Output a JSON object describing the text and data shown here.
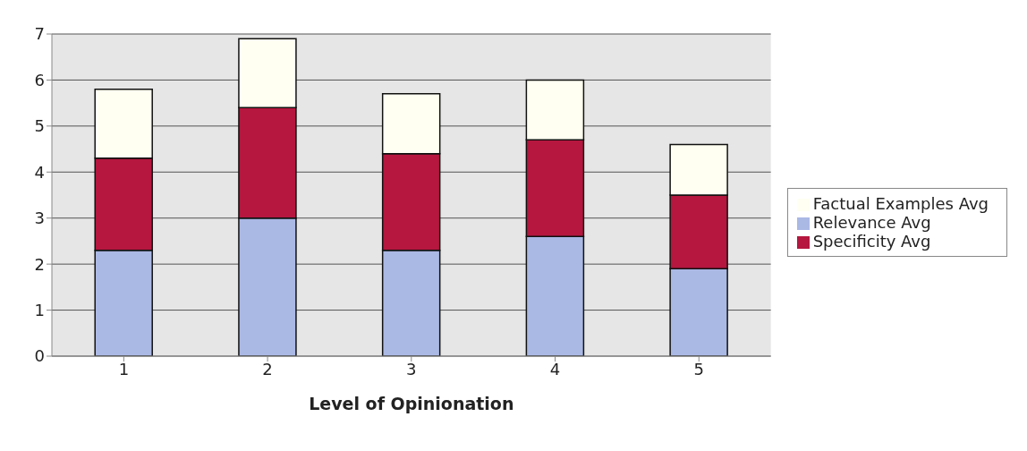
{
  "chart_data": {
    "type": "bar",
    "stacked": true,
    "xlabel": "Level of Opinionation",
    "categories": [
      "1",
      "2",
      "3",
      "4",
      "5"
    ],
    "series": [
      {
        "name": "Relevance Avg",
        "color": "#aab8e4",
        "values": [
          2.3,
          3.0,
          2.3,
          2.6,
          1.9
        ]
      },
      {
        "name": "Specificity Avg",
        "color": "#b5173f",
        "values": [
          2.0,
          2.4,
          2.1,
          2.1,
          1.6
        ]
      },
      {
        "name": "Factual Examples Avg",
        "color": "#fffff2",
        "values": [
          1.5,
          1.5,
          1.3,
          1.3,
          1.1
        ]
      }
    ],
    "ylim": [
      0,
      7
    ],
    "yticks": [
      0,
      1,
      2,
      3,
      4,
      5,
      6,
      7
    ],
    "grid": "y",
    "legend": "right"
  }
}
